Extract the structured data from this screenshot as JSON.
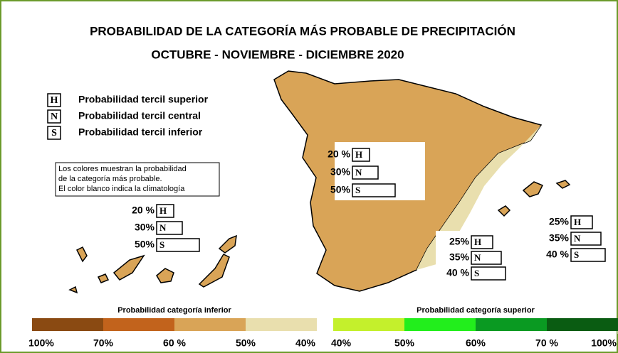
{
  "title": "PROBABILIDAD DE LA CATEGORÍA MÁS PROBABLE DE PRECIPITACIÓN",
  "subtitle": "OCTUBRE - NOVIEMBRE - DICIEMBRE  2020",
  "legend": [
    {
      "code": "H",
      "label": "Probabilidad  tercil superior"
    },
    {
      "code": "N",
      "label": "Probabilidad  tercil central"
    },
    {
      "code": "S",
      "label": "Probabilidad  tercil inferior"
    }
  ],
  "note": [
    "Los colores muestran la probabilidad",
    "de la categoría más probable.",
    "El color blanco indica la climatología"
  ],
  "panels": [
    {
      "rows": [
        {
          "code": "H",
          "value": 20,
          "label": "20 %"
        },
        {
          "code": "N",
          "value": 30,
          "label": "30%"
        },
        {
          "code": "S",
          "value": 50,
          "label": "50%"
        }
      ]
    },
    {
      "rows": [
        {
          "code": "H",
          "value": 20,
          "label": "20 %"
        },
        {
          "code": "N",
          "value": 30,
          "label": "30%"
        },
        {
          "code": "S",
          "value": 50,
          "label": "50%"
        }
      ]
    },
    {
      "rows": [
        {
          "code": "H",
          "value": 25,
          "label": "25%"
        },
        {
          "code": "N",
          "value": 35,
          "label": "35%"
        },
        {
          "code": "S",
          "value": 40,
          "label": "40 %"
        }
      ]
    },
    {
      "rows": [
        {
          "code": "H",
          "value": 25,
          "label": "25%"
        },
        {
          "code": "N",
          "value": 35,
          "label": "35%"
        },
        {
          "code": "S",
          "value": 40,
          "label": "40 %"
        }
      ]
    }
  ],
  "scales": [
    {
      "title": "Probabilidad categoría inferior",
      "colors": [
        "#8a4a12",
        "#c2631c",
        "#d9a457",
        "#e9dfae"
      ],
      "ticks": [
        {
          "value": 100,
          "label": "100%"
        },
        {
          "value": 70,
          "label": "70%"
        },
        {
          "value": 60,
          "label": "60 %"
        },
        {
          "value": 50,
          "label": "50%"
        },
        {
          "value": 40,
          "label": "40%"
        }
      ]
    },
    {
      "title": "Probabilidad categoría superior",
      "colors": [
        "#c4f02c",
        "#22ee1c",
        "#0a9a22",
        "#0a5c12"
      ],
      "ticks": [
        {
          "value": 40,
          "label": "40%"
        },
        {
          "value": 50,
          "label": "50%"
        },
        {
          "value": 60,
          "label": "60%"
        },
        {
          "value": 70,
          "label": "70 %"
        },
        {
          "value": 100,
          "label": "100%"
        }
      ]
    }
  ]
}
